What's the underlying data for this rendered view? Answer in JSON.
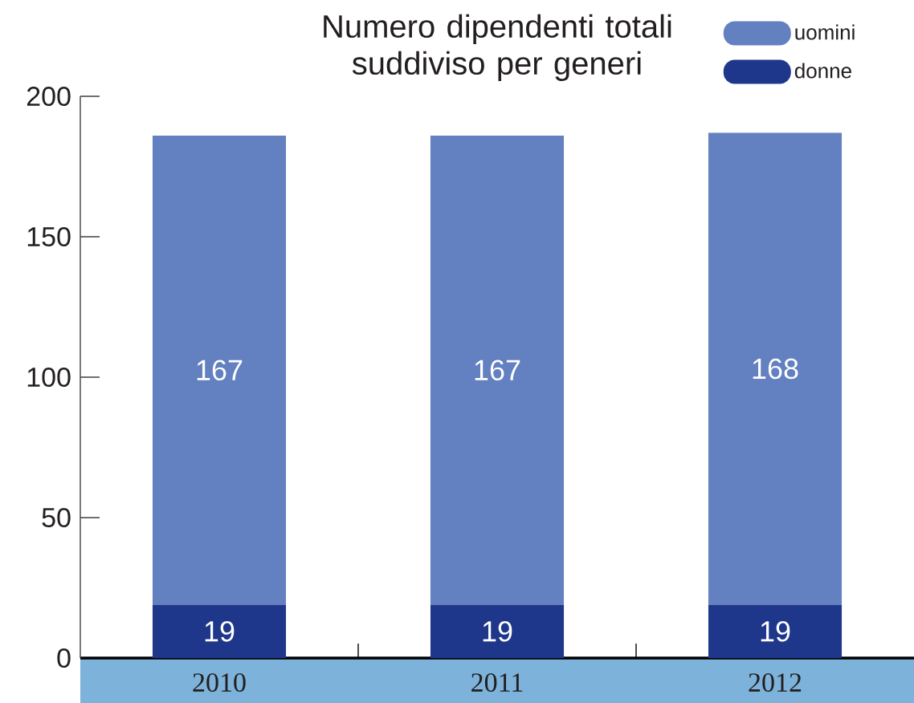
{
  "chart_data": {
    "type": "bar",
    "title": "Numero dipendenti totali suddiviso per generi",
    "categories": [
      "2010",
      "2011",
      "2012"
    ],
    "stacked": true,
    "series": [
      {
        "name": "donne",
        "color": "#1f378b",
        "values": [
          19,
          19,
          19
        ]
      },
      {
        "name": "uomini",
        "color": "#6380c0",
        "values": [
          167,
          167,
          168
        ]
      }
    ],
    "ylim": [
      0,
      200
    ],
    "yticks": [
      0,
      50,
      100,
      150,
      200
    ],
    "data_labels": true,
    "legend": "top right",
    "grid": false
  }
}
